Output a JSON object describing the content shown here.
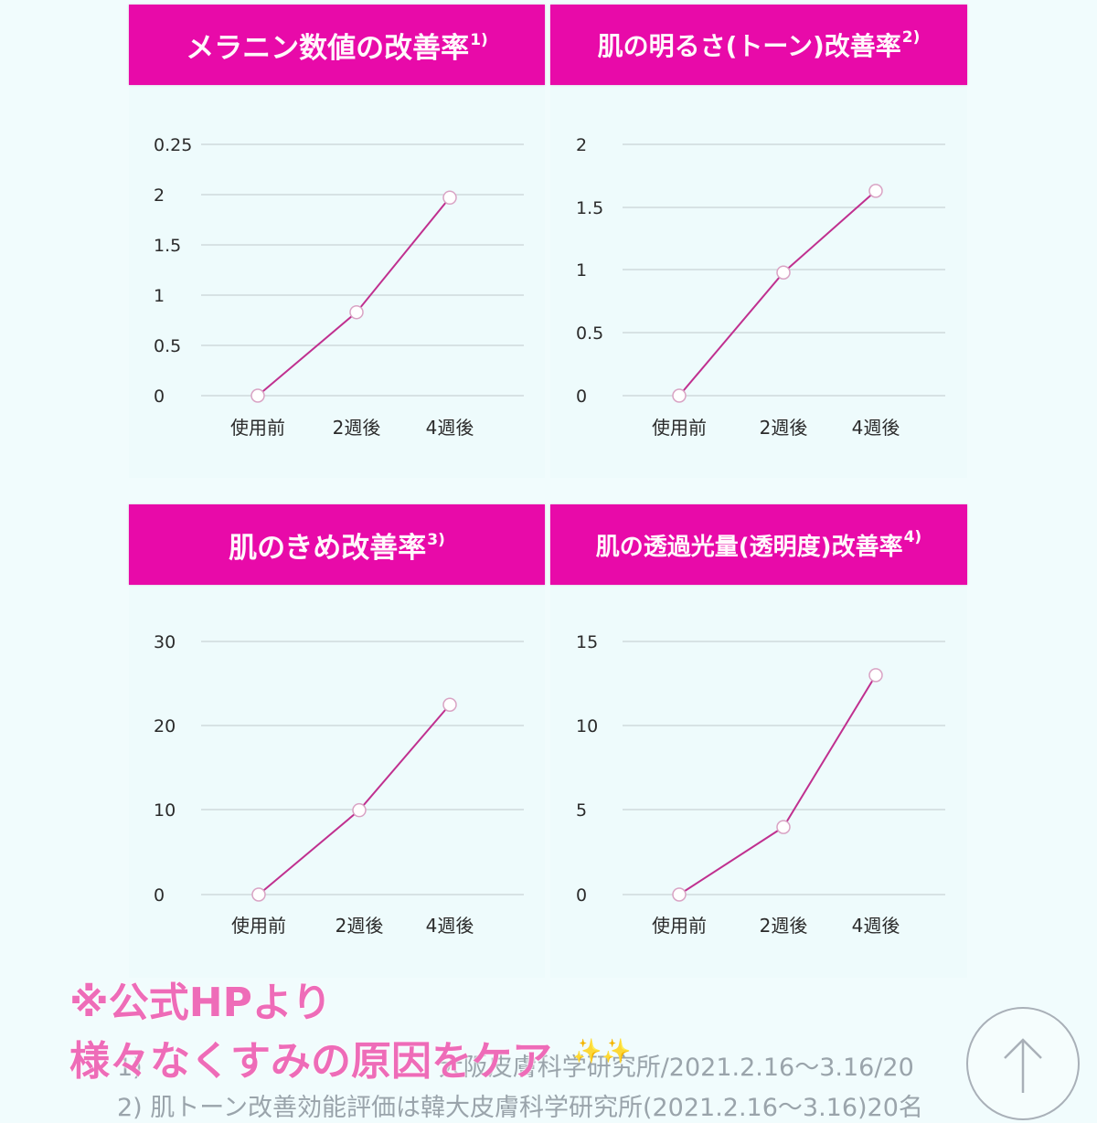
{
  "colors": {
    "background": "#f1fcfd",
    "header": "#e80aa9",
    "line": "#c0308f",
    "grid": "#c9d3d6",
    "caption": "#ee6cb8",
    "footnote": "#9aa4ab"
  },
  "panels": [
    {
      "title": "メラニン数値の改善率",
      "note": "1)"
    },
    {
      "title": "肌の明るさ(トーン)改善率",
      "note": "2)"
    },
    {
      "title": "肌のきめ改善率",
      "note": "3)"
    },
    {
      "title": "肌の透過光量(透明度)改善率",
      "note": "4)"
    }
  ],
  "chart_data": [
    {
      "type": "line",
      "title": "メラニン数値の改善率1)",
      "categories": [
        "使用前",
        "2週後",
        "4週後"
      ],
      "values": [
        0,
        0.83,
        1.97
      ],
      "y_ticks": [
        "0",
        "0.5",
        "1",
        "1.5",
        "2",
        "0.25"
      ],
      "ylim": [
        0,
        2.5
      ],
      "grid": true,
      "xlabel": "",
      "ylabel": ""
    },
    {
      "type": "line",
      "title": "肌の明るさ(トーン)改善率2)",
      "categories": [
        "使用前",
        "2週後",
        "4週後"
      ],
      "values": [
        0,
        0.98,
        1.63
      ],
      "y_ticks": [
        "0",
        "0.5",
        "1",
        "1.5",
        "2"
      ],
      "ylim": [
        0,
        2
      ],
      "grid": true,
      "xlabel": "",
      "ylabel": ""
    },
    {
      "type": "line",
      "title": "肌のきめ改善率3)",
      "categories": [
        "使用前",
        "2週後",
        "4週後"
      ],
      "values": [
        0,
        10,
        22.5
      ],
      "y_ticks": [
        "0",
        "10",
        "20",
        "30"
      ],
      "ylim": [
        0,
        30
      ],
      "grid": true,
      "xlabel": "",
      "ylabel": ""
    },
    {
      "type": "line",
      "title": "肌の透過光量(透明度)改善率4)",
      "categories": [
        "使用前",
        "2週後",
        "4週後"
      ],
      "values": [
        0,
        4,
        13
      ],
      "y_ticks": [
        "0",
        "5",
        "10",
        "15"
      ],
      "ylim": [
        0,
        15
      ],
      "grid": true,
      "xlabel": "",
      "ylabel": ""
    }
  ],
  "overlay": {
    "line1": "※公式HPより",
    "line2": "様々なくすみの原因をケア",
    "sparkles": "✨✨"
  },
  "footnotes": {
    "line1": "1) 肌(メラニン…)　…大阪皮膚科学研究所/2021.2.16〜3.16/20",
    "line1_visible": "1)　　　　　　　　　　　　大阪皮膚科学研究所/2021.2.16〜3.16/20",
    "line2": "2) 肌トーン改善効能評価は韓大皮膚科学研究所(2021.2.16〜3.16)20名"
  },
  "scroll_top": {
    "icon": "arrow-up-icon"
  }
}
